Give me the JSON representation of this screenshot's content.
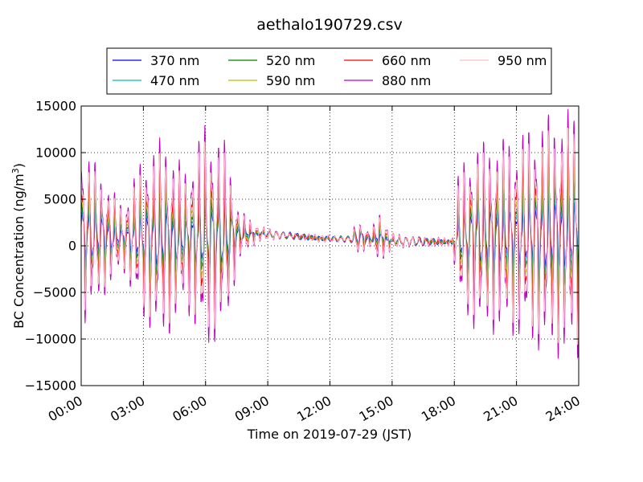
{
  "chart_data": {
    "type": "line",
    "title": "aethalo190729.csv",
    "xlabel": "Time on 2019-07-29 (JST)",
    "ylabel_main": "BC Concentration (ng/m",
    "ylabel_sup": "3",
    "ylabel_close": ")",
    "xlim": [
      0,
      24
    ],
    "ylim": [
      -15000,
      15000
    ],
    "x_ticks": [
      0,
      3,
      6,
      9,
      12,
      15,
      18,
      21,
      24
    ],
    "x_tick_labels": [
      "00:00",
      "03:00",
      "06:00",
      "09:00",
      "12:00",
      "15:00",
      "18:00",
      "21:00",
      "24:00"
    ],
    "y_ticks": [
      -15000,
      -10000,
      -5000,
      0,
      5000,
      10000,
      15000
    ],
    "y_tick_labels": [
      "−15000",
      "−10000",
      "−5000",
      "0",
      "5000",
      "10000",
      "15000"
    ],
    "grid": true,
    "legend_position": "top-center",
    "series": [
      {
        "name": "370 nm",
        "color": "#0000ff",
        "gain": 0.35,
        "slope": 1.6
      },
      {
        "name": "470 nm",
        "color": "#00bfbf",
        "gain": 0.45,
        "slope": 1.25
      },
      {
        "name": "520 nm",
        "color": "#008000",
        "gain": 0.55,
        "slope": 0.95
      },
      {
        "name": "590 nm",
        "color": "#bfbf00",
        "gain": 0.7,
        "slope": 0.6
      },
      {
        "name": "660 nm",
        "color": "#ff0000",
        "gain": 0.85,
        "slope": 0.25
      },
      {
        "name": "880 nm",
        "color": "#bf00bf",
        "gain": 1.15,
        "slope": -0.45
      },
      {
        "name": "950 nm",
        "color": "#ffc0cb",
        "gain": 1.0,
        "slope": -0.6
      }
    ],
    "envelope": [
      {
        "x": 0.0,
        "amp": 9000,
        "base": 1200
      },
      {
        "x": 1.0,
        "amp": 6000,
        "base": 1100
      },
      {
        "x": 2.0,
        "amp": 3000,
        "base": 900
      },
      {
        "x": 3.0,
        "amp": 8000,
        "base": 800
      },
      {
        "x": 4.0,
        "amp": 10000,
        "base": 700
      },
      {
        "x": 5.0,
        "amp": 6500,
        "base": 800
      },
      {
        "x": 6.0,
        "amp": 11000,
        "base": 900
      },
      {
        "x": 7.0,
        "amp": 9000,
        "base": 1000
      },
      {
        "x": 7.6,
        "amp": 2500,
        "base": 1200
      },
      {
        "x": 8.5,
        "amp": 700,
        "base": 1300
      },
      {
        "x": 10.0,
        "amp": 300,
        "base": 1100
      },
      {
        "x": 11.5,
        "amp": 300,
        "base": 800
      },
      {
        "x": 13.0,
        "amp": 250,
        "base": 700
      },
      {
        "x": 13.3,
        "amp": 1800,
        "base": 900
      },
      {
        "x": 14.0,
        "amp": 600,
        "base": 700
      },
      {
        "x": 14.3,
        "amp": 2600,
        "base": 900
      },
      {
        "x": 15.0,
        "amp": 700,
        "base": 500
      },
      {
        "x": 17.9,
        "amp": 300,
        "base": 400
      },
      {
        "x": 18.2,
        "amp": 6500,
        "base": 800
      },
      {
        "x": 19.0,
        "amp": 9000,
        "base": 1000
      },
      {
        "x": 21.0,
        "amp": 9500,
        "base": 1000
      },
      {
        "x": 22.5,
        "amp": 11500,
        "base": 1100
      },
      {
        "x": 24.0,
        "amp": 12000,
        "base": 1200
      }
    ]
  }
}
